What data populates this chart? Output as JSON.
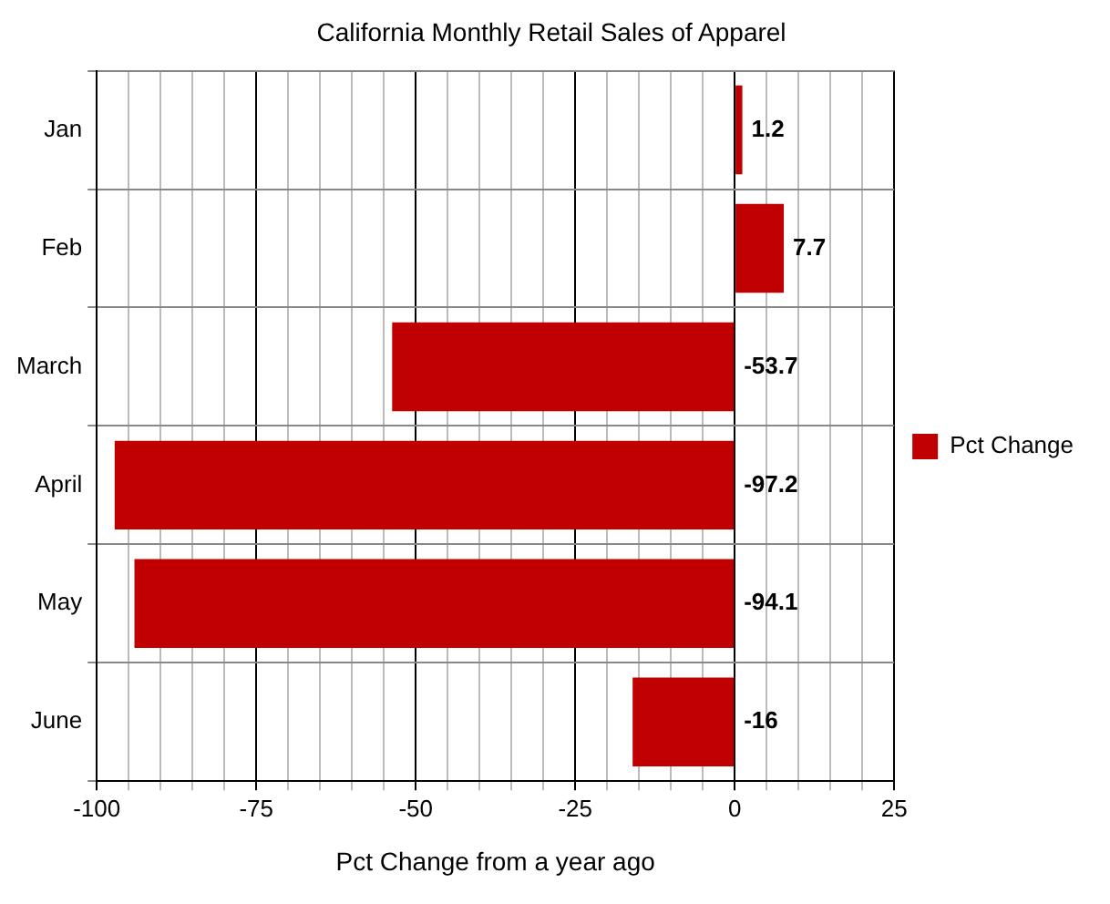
{
  "chart_data": {
    "type": "bar",
    "orientation": "horizontal",
    "title": "California Monthly Retail Sales of Apparel",
    "xlabel": "Pct Change from a year ago",
    "categories": [
      "Jan",
      "Feb",
      "March",
      "April",
      "May",
      "June"
    ],
    "series": [
      {
        "name": "Pct Change",
        "color": "#c00000",
        "values": [
          1.2,
          7.7,
          -53.7,
          -97.2,
          -94.1,
          -16
        ]
      }
    ],
    "xlim": [
      -100,
      25
    ],
    "xticks": [
      -100,
      {
        "value": -95,
        "label": null
      },
      {
        "value": -90,
        "label": null
      },
      {
        "value": -85,
        "label": null
      },
      {
        "value": -80,
        "label": null
      },
      -75,
      {
        "value": -70,
        "label": null
      },
      {
        "value": -65,
        "label": null
      },
      {
        "value": -60,
        "label": null
      },
      {
        "value": -55,
        "label": null
      },
      -50,
      {
        "value": -45,
        "label": null
      },
      {
        "value": -40,
        "label": null
      },
      {
        "value": -35,
        "label": null
      },
      {
        "value": -30,
        "label": null
      },
      -25,
      {
        "value": -20,
        "label": null
      },
      {
        "value": -15,
        "label": null
      },
      {
        "value": -10,
        "label": null
      },
      {
        "value": -5,
        "label": null
      },
      0,
      {
        "value": 5,
        "label": null
      },
      {
        "value": 10,
        "label": null
      },
      {
        "value": 15,
        "label": null
      },
      {
        "value": 20,
        "label": null
      },
      25
    ],
    "grid": true,
    "legend": "right",
    "data_labels": true
  }
}
